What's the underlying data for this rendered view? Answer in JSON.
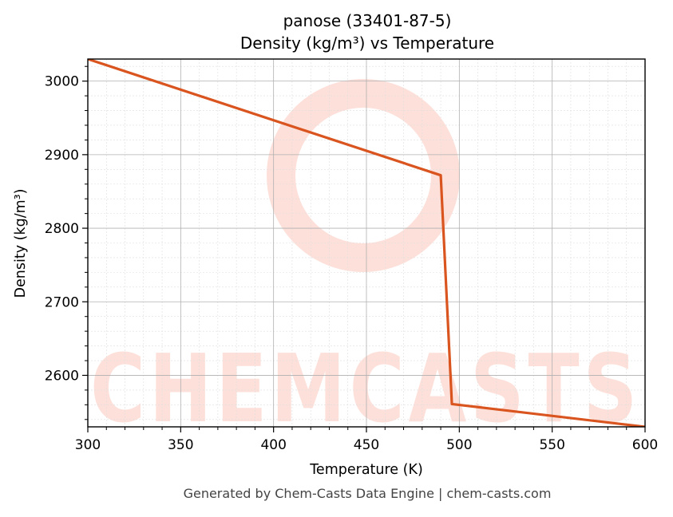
{
  "title": {
    "line1": "panose (33401-87-5)",
    "line2": "Density (kg/m³) vs Temperature"
  },
  "footer": "Generated by Chem-Casts Data Engine | chem-casts.com",
  "watermark": {
    "text": "CHEMCASTS"
  },
  "colors": {
    "line": "#d9541e",
    "watermark": "#fde0d9",
    "grid_major": "#b0b0b0",
    "grid_minor": "#dedede"
  },
  "chart_data": {
    "type": "line",
    "title": "panose (33401-87-5) Density (kg/m³) vs Temperature",
    "xlabel": "Temperature (K)",
    "ylabel": "Density (kg/m³)",
    "xlim": [
      300,
      600
    ],
    "ylim": [
      2530,
      3030
    ],
    "x_ticks": [
      300,
      350,
      400,
      450,
      500,
      550,
      600
    ],
    "y_ticks": [
      2600,
      2700,
      2800,
      2900,
      3000
    ],
    "grid": true,
    "legend": "none",
    "series": [
      {
        "x": [
          300,
          490,
          496,
          600
        ],
        "y": [
          3030,
          2872,
          2561,
          2530
        ]
      }
    ]
  }
}
